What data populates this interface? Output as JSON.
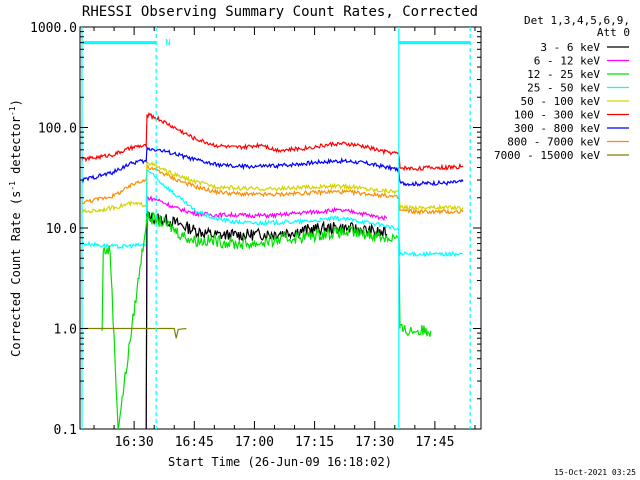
{
  "chart_data": {
    "type": "line",
    "title": "RHESSI Observing Summary Count Rates, Corrected",
    "xlabel": "Start Time (26-Jun-09 16:18:02)",
    "ylabel_pre": "Corrected Count Rate (s",
    "ylabel_sup1": "-1",
    "ylabel_mid": " detector",
    "ylabel_sup2": "-1",
    "ylabel_post": ")",
    "scale": "log",
    "ylim": [
      0.1,
      1000
    ],
    "xlim_minutes": [
      16.5,
      116.5
    ],
    "x_ticks": [
      {
        "t": 30,
        "label": "16:30"
      },
      {
        "t": 45,
        "label": "16:45"
      },
      {
        "t": 60,
        "label": "17:00"
      },
      {
        "t": 75,
        "label": "17:15"
      },
      {
        "t": 90,
        "label": "17:30"
      },
      {
        "t": 105,
        "label": "17:45"
      }
    ],
    "y_ticks": [
      {
        "v": 0.1,
        "label": "0.1"
      },
      {
        "v": 1,
        "label": "1.0"
      },
      {
        "v": 10,
        "label": "10.0"
      },
      {
        "v": 100,
        "label": "100.0"
      },
      {
        "v": 1000,
        "label": "1000.0"
      }
    ],
    "legend_header": [
      "Det 1,3,4,5,6,9,",
      "Att 0"
    ],
    "legend_placement": "right",
    "footer_timestamp": "15-Oct-2021 03:25",
    "night_marker": "N",
    "series": [
      {
        "name": "3 - 6 keV",
        "color": "#000000",
        "values": [
          [
            33,
            0
          ],
          [
            33.2,
            13
          ],
          [
            38,
            12
          ],
          [
            41,
            11
          ],
          [
            45,
            9.5
          ],
          [
            50,
            8.5
          ],
          [
            55,
            8.5
          ],
          [
            60,
            8.6
          ],
          [
            65,
            8.8
          ],
          [
            70,
            9.2
          ],
          [
            75,
            9.8
          ],
          [
            80,
            10
          ],
          [
            85,
            9.8
          ],
          [
            90,
            9.2
          ],
          [
            93,
            8.7
          ]
        ]
      },
      {
        "name": "6 - 12 keV",
        "color": "#ff00ff",
        "values": [
          [
            33,
            0
          ],
          [
            33.2,
            20
          ],
          [
            36,
            19
          ],
          [
            40,
            16
          ],
          [
            45,
            14
          ],
          [
            50,
            13.5
          ],
          [
            55,
            13.5
          ],
          [
            60,
            13.3
          ],
          [
            65,
            13.3
          ],
          [
            70,
            14
          ],
          [
            75,
            14.5
          ],
          [
            80,
            15
          ],
          [
            85,
            14.5
          ],
          [
            90,
            13
          ],
          [
            93,
            12.5
          ]
        ]
      },
      {
        "name": "12 - 25 keV",
        "color": "#00e000",
        "values": [
          [
            22,
            0.95
          ],
          [
            22.3,
            6
          ],
          [
            24,
            6
          ],
          [
            26,
            0
          ],
          [
            33.2,
            13
          ],
          [
            38,
            11
          ],
          [
            42,
            8.5
          ],
          [
            45,
            7.5
          ],
          [
            50,
            7.5
          ],
          [
            55,
            7
          ],
          [
            60,
            7
          ],
          [
            65,
            7.5
          ],
          [
            70,
            8
          ],
          [
            75,
            8.5
          ],
          [
            80,
            9
          ],
          [
            85,
            9
          ],
          [
            90,
            8.5
          ],
          [
            93,
            8
          ],
          [
            96,
            8
          ],
          [
            96.3,
            1
          ],
          [
            97.5,
            0.95
          ],
          [
            104,
            0.95
          ]
        ]
      },
      {
        "name": "25 - 50 keV",
        "color": "#00ffff",
        "values": [
          [
            17,
            7
          ],
          [
            21,
            6.8
          ],
          [
            26,
            6.5
          ],
          [
            30,
            6.7
          ],
          [
            33,
            6.8
          ],
          [
            33.2,
            38
          ],
          [
            36,
            30
          ],
          [
            40,
            22
          ],
          [
            45,
            15
          ],
          [
            50,
            12.5
          ],
          [
            55,
            11.5
          ],
          [
            60,
            11.2
          ],
          [
            65,
            11.3
          ],
          [
            70,
            11.5
          ],
          [
            75,
            11.8
          ],
          [
            80,
            12.5
          ],
          [
            85,
            12
          ],
          [
            90,
            11
          ],
          [
            93,
            10.5
          ],
          [
            96,
            9.5
          ],
          [
            96.3,
            5.5
          ],
          [
            100,
            5.5
          ],
          [
            104,
            5.5
          ],
          [
            108,
            5.5
          ],
          [
            112,
            5.5
          ]
        ]
      },
      {
        "name": "50 - 100 keV",
        "color": "#d4d400",
        "values": [
          [
            17,
            14.5
          ],
          [
            21,
            15
          ],
          [
            25,
            16
          ],
          [
            29,
            17.5
          ],
          [
            33,
            17
          ],
          [
            33.2,
            46
          ],
          [
            36,
            40
          ],
          [
            40,
            34
          ],
          [
            45,
            29
          ],
          [
            50,
            26
          ],
          [
            55,
            25
          ],
          [
            60,
            24.5
          ],
          [
            65,
            24.5
          ],
          [
            70,
            25
          ],
          [
            75,
            25.5
          ],
          [
            80,
            26
          ],
          [
            85,
            25.5
          ],
          [
            90,
            24
          ],
          [
            93,
            23.5
          ],
          [
            96,
            23
          ],
          [
            96.3,
            16
          ],
          [
            100,
            16
          ],
          [
            104,
            16
          ],
          [
            108,
            16
          ],
          [
            112,
            16
          ]
        ]
      },
      {
        "name": "100 - 300 keV",
        "color": "#ff0000",
        "values": [
          [
            17,
            48
          ],
          [
            20,
            50
          ],
          [
            25,
            54
          ],
          [
            29,
            62
          ],
          [
            31,
            65
          ],
          [
            33,
            65
          ],
          [
            33.2,
            135
          ],
          [
            36,
            122
          ],
          [
            40,
            100
          ],
          [
            45,
            78
          ],
          [
            50,
            67
          ],
          [
            55,
            63
          ],
          [
            58,
            64
          ],
          [
            60,
            66
          ],
          [
            62,
            68
          ],
          [
            65,
            60
          ],
          [
            68,
            60
          ],
          [
            72,
            62
          ],
          [
            76,
            65
          ],
          [
            80,
            69
          ],
          [
            84,
            68
          ],
          [
            88,
            64
          ],
          [
            92,
            58
          ],
          [
            96,
            55
          ],
          [
            96.3,
            40
          ],
          [
            100,
            39
          ],
          [
            104,
            40
          ],
          [
            108,
            40
          ],
          [
            112,
            41
          ]
        ]
      },
      {
        "name": "300 - 800 keV",
        "color": "#0000ff",
        "values": [
          [
            17,
            30
          ],
          [
            20,
            32
          ],
          [
            25,
            36
          ],
          [
            28,
            42
          ],
          [
            31,
            46
          ],
          [
            33,
            46
          ],
          [
            33.2,
            62
          ],
          [
            36,
            60
          ],
          [
            40,
            55
          ],
          [
            45,
            48
          ],
          [
            50,
            43
          ],
          [
            55,
            41
          ],
          [
            60,
            41
          ],
          [
            65,
            41.5
          ],
          [
            70,
            43
          ],
          [
            75,
            45
          ],
          [
            80,
            46.5
          ],
          [
            84,
            46
          ],
          [
            88,
            44
          ],
          [
            92,
            41
          ],
          [
            96,
            38
          ],
          [
            96.3,
            28
          ],
          [
            100,
            27.5
          ],
          [
            104,
            28
          ],
          [
            108,
            28
          ],
          [
            112,
            29
          ]
        ]
      },
      {
        "name": "800 - 7000 keV",
        "color": "#ff8c00",
        "values": [
          [
            17,
            18
          ],
          [
            20,
            19
          ],
          [
            25,
            21
          ],
          [
            29,
            26
          ],
          [
            31,
            29
          ],
          [
            33,
            30
          ],
          [
            33.2,
            40
          ],
          [
            36,
            37
          ],
          [
            40,
            31
          ],
          [
            45,
            26
          ],
          [
            50,
            23
          ],
          [
            55,
            22
          ],
          [
            60,
            21.5
          ],
          [
            65,
            21.5
          ],
          [
            70,
            22
          ],
          [
            75,
            22.5
          ],
          [
            80,
            23
          ],
          [
            85,
            22.5
          ],
          [
            90,
            21.5
          ],
          [
            93,
            21
          ],
          [
            96,
            20
          ],
          [
            96.3,
            15
          ],
          [
            100,
            14.5
          ],
          [
            104,
            14.5
          ],
          [
            108,
            14.5
          ],
          [
            112,
            14.5
          ]
        ]
      },
      {
        "name": "7000 - 15000 keV",
        "color": "#808000",
        "values": [
          [
            17,
            1
          ],
          [
            24,
            1
          ],
          [
            28,
            1
          ],
          [
            32,
            1
          ],
          [
            36,
            1
          ],
          [
            40,
            1
          ],
          [
            40.5,
            0.8
          ],
          [
            41,
            0.98
          ],
          [
            43,
            1
          ]
        ]
      }
    ],
    "orbit_markers": [
      {
        "label": "night",
        "t_start": 17,
        "t_end": 35.5,
        "level": 700
      },
      {
        "label": "night",
        "t_start": 96,
        "t_end": 113.8,
        "level": 700
      }
    ],
    "orbit_edges_solid": [
      17,
      96
    ],
    "orbit_edges_dashed": [
      35.5,
      113.8
    ]
  }
}
